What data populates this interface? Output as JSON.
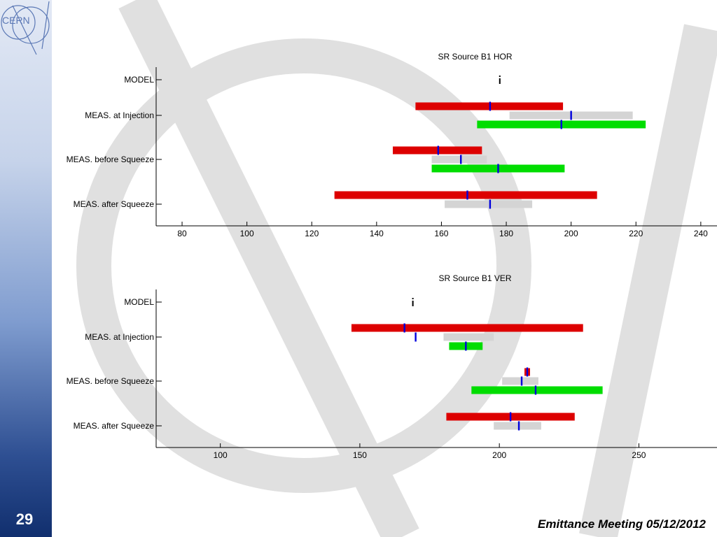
{
  "slide": {
    "number": "29",
    "footer": "Emittance Meeting 05/12/2012",
    "logo_text": "CERN"
  },
  "colors": {
    "injection_start": "#dd0000",
    "gray": "#d4d4d4",
    "green": "#00dd00",
    "mean_marker": "#0000dd"
  },
  "chart_data": [
    {
      "type": "bar",
      "title": "SR Source B1 HOR",
      "categories": [
        "MODEL",
        "MEAS. at Injection",
        "MEAS. before Squeeze",
        "MEAS. after Squeeze"
      ],
      "xlim": [
        72,
        245
      ],
      "xticks": [
        80,
        100,
        120,
        140,
        160,
        180,
        200,
        220,
        240
      ],
      "model": {
        "value": 178
      },
      "series": [
        {
          "color": "red",
          "ranges": [
            null,
            [
              152,
              197.5
            ],
            [
              145,
              172.5
            ],
            [
              127,
              208
            ]
          ],
          "means": [
            null,
            175,
            159,
            168
          ]
        },
        {
          "color": "gray",
          "ranges": [
            null,
            [
              181,
              219
            ],
            [
              157,
              174
            ],
            [
              161,
              188
            ]
          ],
          "means": [
            null,
            200,
            166,
            175
          ]
        },
        {
          "color": "green",
          "ranges": [
            null,
            [
              171,
              223
            ],
            [
              157,
              198
            ]
          ],
          "means": [
            null,
            197,
            177.5
          ]
        }
      ]
    },
    {
      "type": "bar",
      "title": "SR Source B1 VER",
      "categories": [
        "MODEL",
        "MEAS. at Injection",
        "MEAS. before Squeeze",
        "MEAS. after Squeeze"
      ],
      "xlim": [
        77,
        278
      ],
      "xticks": [
        100,
        150,
        200,
        250
      ],
      "model": {
        "value": 169
      },
      "series": [
        {
          "color": "red",
          "ranges": [
            null,
            [
              147,
              230
            ],
            [
              209,
              211
            ],
            [
              181,
              227
            ]
          ],
          "means": [
            null,
            166,
            210,
            204
          ]
        },
        {
          "color": "gray",
          "ranges": [
            null,
            [
              180,
              198
            ],
            [
              201,
              214
            ],
            [
              198,
              215
            ]
          ],
          "means": [
            null,
            170,
            208,
            207
          ]
        },
        {
          "color": "green",
          "ranges": [
            null,
            [
              182,
              194
            ],
            [
              190,
              237
            ]
          ],
          "means": [
            null,
            188,
            213
          ]
        }
      ]
    }
  ]
}
